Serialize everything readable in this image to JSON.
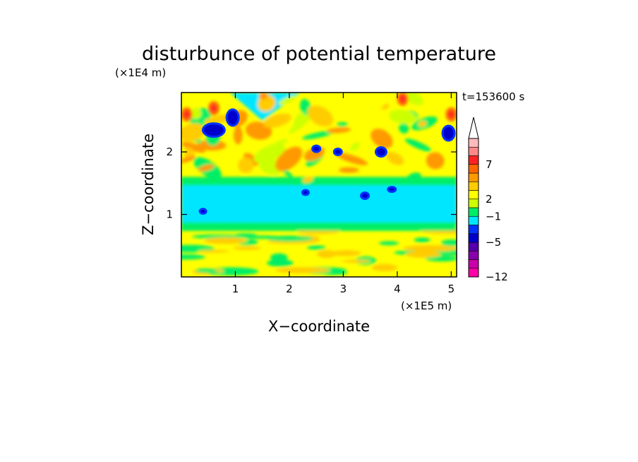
{
  "chart_data": {
    "type": "heatmap",
    "title": "disturbunce of potential temperature",
    "xlabel": "X−coordinate",
    "ylabel": "Z−coordinate",
    "x_unit": "(×1E5 m)",
    "y_unit": "(×1E4 m)",
    "time_label": "t=153600 s",
    "x_ticks": [
      "1",
      "2",
      "3",
      "4",
      "5"
    ],
    "y_ticks": [
      "1",
      "2"
    ],
    "xlim": [
      0,
      5.1
    ],
    "ylim": [
      0,
      2.95
    ],
    "colorbar": {
      "levels_shown": [
        "7",
        "2",
        "−1",
        "−5",
        "−12"
      ],
      "colors_bottom_to_top": [
        "#ff00a8",
        "#cc00aa",
        "#8800aa",
        "#5500aa",
        "#0000cc",
        "#0033ff",
        "#00e6ff",
        "#00ee66",
        "#ccff00",
        "#ffff00",
        "#ffcc00",
        "#ff9900",
        "#ff6600",
        "#ff2222",
        "#ff8888",
        "#ffbbbb"
      ],
      "extend": "max"
    },
    "field_description": {
      "band_cyan_z_range": [
        0.85,
        1.5
      ],
      "regions": [
        {
          "name": "lower-yellow-layer",
          "z_range": [
            0,
            0.85
          ],
          "dominant_level": "yellow"
        },
        {
          "name": "mid-cyan-layer",
          "z_range": [
            0.85,
            1.5
          ],
          "dominant_level": "cyan"
        },
        {
          "name": "upper-mixed-layer",
          "z_range": [
            1.5,
            2.95
          ],
          "dominant_level": "yellow-orange"
        }
      ]
    }
  }
}
